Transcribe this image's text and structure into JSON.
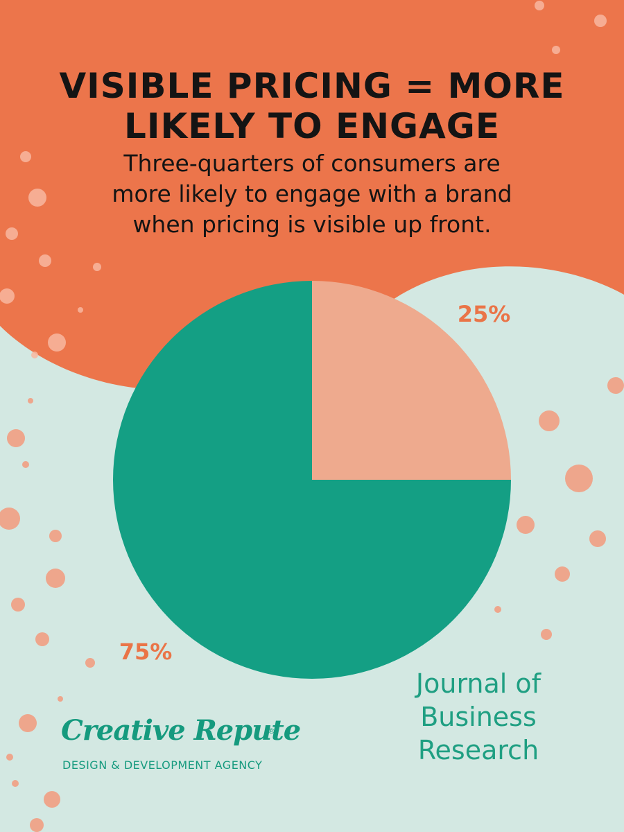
{
  "header": {
    "title_line1": "VISIBLE PRICING = MORE",
    "title_line2": "LIKELY TO ENGAGE",
    "subtitle_line1": "Three-quarters of consumers are",
    "subtitle_line2": "more likely to engage with a brand",
    "subtitle_line3": "when pricing is visible up front."
  },
  "chart_data": {
    "type": "pie",
    "slices": [
      {
        "label": "25%",
        "value": 25,
        "color": "#eeaa8e"
      },
      {
        "label": "75%",
        "value": 75,
        "color": "#149f84"
      }
    ]
  },
  "source": {
    "line1": "Journal of",
    "line2": "Business",
    "line3": "Research"
  },
  "logo": {
    "name": "Creative Repute",
    "registered": "®",
    "tagline": "DESIGN & DEVELOPMENT AGENCY"
  },
  "colors": {
    "background": "#d3e8e2",
    "orange": "#ec754b",
    "teal": "#149f84",
    "salmon": "#eeaa8e",
    "label_orange": "#ea7447",
    "text_dark": "#141414"
  }
}
